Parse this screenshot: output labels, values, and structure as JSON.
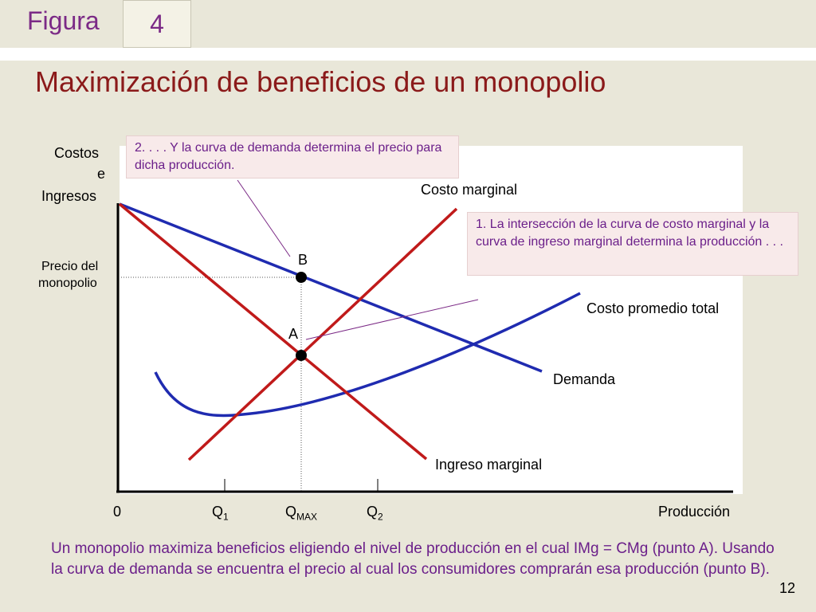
{
  "header": {
    "figure_label": "Figura",
    "figure_number": "4"
  },
  "title": "Maximización de beneficios de un monopolio",
  "chart": {
    "y_axis_label": [
      "Costos",
      "e",
      "Ingresos"
    ],
    "x_axis_label": "Producción",
    "origin_label": "0",
    "price_label": [
      "Precio del",
      "monopolio"
    ],
    "quantity_ticks": [
      {
        "main": "Q",
        "sub": "1"
      },
      {
        "main": "Q",
        "sub": "MAX"
      },
      {
        "main": "Q",
        "sub": "2"
      }
    ],
    "curves": {
      "marginal_cost": "Costo marginal",
      "average_total_cost": "Costo promedio total",
      "demand": "Demanda",
      "marginal_revenue": "Ingreso marginal"
    },
    "points": {
      "a": "A",
      "b": "B"
    },
    "colors": {
      "demand": "#1f2bb0",
      "atc": "#1f2bb0",
      "mc": "#c01a1a",
      "mr": "#c01a1a"
    }
  },
  "callouts": {
    "demand_note": "2. . . . Y la curva de demanda determina el precio para dicha producción.",
    "intersection_note": "1. La intersección de la curva de costo marginal y la curva de ingreso marginal determina la producción . . ."
  },
  "caption": "Un monopolio maximiza beneficios eligiendo el nivel de producción en el cual IMg = CMg (punto A). Usando la curva de demanda se encuentra el precio al cual los consumidores comprarán esa producción (punto B).",
  "page_number": "12"
}
